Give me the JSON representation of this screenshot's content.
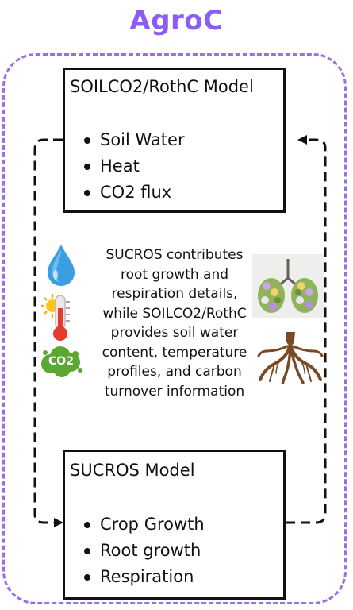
{
  "title": "AgroC",
  "soil_model": {
    "title": "SOILCO2/RothC Model",
    "items": [
      "Soil Water",
      "Heat",
      "CO2 flux"
    ]
  },
  "sucros_model": {
    "title": "SUCROS Model",
    "items": [
      "Crop Growth",
      "Root growth",
      "Respiration"
    ]
  },
  "description_lines": [
    "SUCROS contributes",
    "root growth and",
    "respiration details,",
    "while SOILCO2/RothC",
    "provides soil water",
    "content, temperature",
    "profiles, and carbon",
    "turnover information"
  ],
  "icons": {
    "water": "water-drop-icon",
    "temperature": "thermometer-sun-icon",
    "co2": "co2-cloud-icon",
    "lungs": "plant-lungs-icon",
    "roots": "roots-icon",
    "co2_label": "CO2"
  },
  "colors": {
    "title": "#8b5cf6",
    "frame": "#9a6fe0",
    "water": "#3b9ee0",
    "co2": "#5aa832",
    "roots": "#7a4a26"
  }
}
